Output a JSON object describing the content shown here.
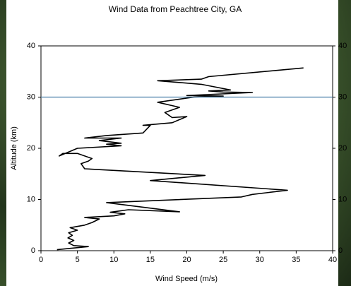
{
  "chart_data": {
    "type": "line",
    "title": "Wind Data from Peachtree City, GA",
    "x_label": "Wind Speed (m/s)",
    "y_label": "Altitude (km)",
    "color": "#000000",
    "x": [
      2.2,
      6.5,
      4.5,
      3.8,
      4.5,
      3.7,
      4.3,
      3.8,
      5,
      4,
      6,
      7,
      8,
      6,
      10,
      11.5,
      9.5,
      12,
      19,
      9,
      27.5,
      29,
      33.8,
      15,
      22.5,
      6,
      5.5,
      6.5,
      7,
      5,
      3,
      2.5,
      5,
      11,
      9,
      11,
      8,
      11,
      6,
      9,
      14,
      15,
      14,
      18,
      20,
      18,
      17,
      19,
      16,
      21,
      25,
      20,
      29,
      25,
      23,
      26,
      22,
      16,
      22,
      23,
      36
    ],
    "y": [
      0.2,
      0.8,
      1,
      1.5,
      2,
      2.5,
      3,
      3.5,
      4,
      4.5,
      5,
      5.5,
      6.2,
      6.5,
      6.8,
      7.2,
      7.5,
      8,
      7.6,
      9.4,
      10.5,
      11,
      11.8,
      13.7,
      14.7,
      16,
      17,
      17.5,
      18,
      19,
      19,
      18.5,
      20,
      20.5,
      20.8,
      21,
      21.5,
      22,
      22,
      22.5,
      23,
      24.5,
      24.5,
      25,
      26.2,
      26,
      27,
      28,
      29,
      30,
      30.2,
      30.3,
      30.9,
      31,
      31.2,
      31.4,
      32.5,
      33.2,
      33.5,
      34,
      35.7
    ],
    "xlim": [
      0,
      40
    ],
    "xticks": [
      0,
      5,
      10,
      15,
      20,
      25,
      30,
      35,
      40
    ],
    "ylim": [
      0,
      40
    ],
    "yticks": [
      0,
      10,
      20,
      30,
      40
    ],
    "y2lim": [
      0,
      40
    ],
    "y2ticks": [
      0,
      10,
      20,
      30,
      40
    ],
    "reference_line": {
      "y": 30,
      "color": "#4a7fa8"
    }
  }
}
